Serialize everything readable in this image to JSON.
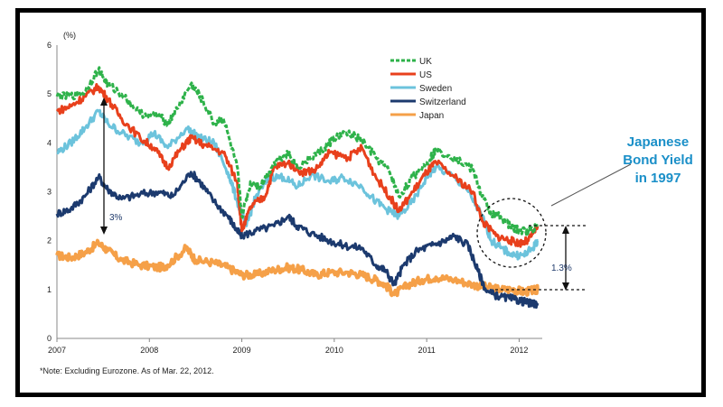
{
  "chart_data": {
    "type": "line",
    "title": "",
    "ylabel": "(%)",
    "xlabel": "",
    "ylim": [
      0,
      6
    ],
    "xlim": [
      2007,
      2012.25
    ],
    "yticks": [
      "0",
      "1",
      "2",
      "3",
      "4",
      "5",
      "6"
    ],
    "xticks": [
      {
        "label": "2007",
        "x": 2007
      },
      {
        "label": "2008",
        "x": 2008
      },
      {
        "label": "2009",
        "x": 2009
      },
      {
        "label": "2010",
        "x": 2010
      },
      {
        "label": "2011",
        "x": 2011
      },
      {
        "label": "2012",
        "x": 2012
      }
    ],
    "series": [
      {
        "name": "UK",
        "color": "#2eb24a",
        "dashed": true,
        "points": [
          [
            2007,
            4.95
          ],
          [
            2007.15,
            4.95
          ],
          [
            2007.3,
            5.05
          ],
          [
            2007.45,
            5.5
          ],
          [
            2007.55,
            5.2
          ],
          [
            2007.7,
            5.0
          ],
          [
            2007.9,
            4.6
          ],
          [
            2008.1,
            4.55
          ],
          [
            2008.2,
            4.4
          ],
          [
            2008.3,
            4.7
          ],
          [
            2008.45,
            5.2
          ],
          [
            2008.55,
            4.95
          ],
          [
            2008.7,
            4.4
          ],
          [
            2008.8,
            4.5
          ],
          [
            2008.95,
            3.5
          ],
          [
            2009.0,
            2.5
          ],
          [
            2009.1,
            3.2
          ],
          [
            2009.2,
            3.1
          ],
          [
            2009.35,
            3.6
          ],
          [
            2009.5,
            3.8
          ],
          [
            2009.6,
            3.5
          ],
          [
            2009.75,
            3.7
          ],
          [
            2009.9,
            3.9
          ],
          [
            2010.0,
            4.1
          ],
          [
            2010.15,
            4.2
          ],
          [
            2010.3,
            4.05
          ],
          [
            2010.45,
            3.7
          ],
          [
            2010.6,
            3.4
          ],
          [
            2010.7,
            2.9
          ],
          [
            2010.85,
            3.3
          ],
          [
            2011.0,
            3.6
          ],
          [
            2011.1,
            3.85
          ],
          [
            2011.3,
            3.7
          ],
          [
            2011.5,
            3.45
          ],
          [
            2011.6,
            2.9
          ],
          [
            2011.7,
            2.55
          ],
          [
            2011.8,
            2.5
          ],
          [
            2011.9,
            2.3
          ],
          [
            2012.0,
            2.2
          ],
          [
            2012.1,
            2.2
          ],
          [
            2012.2,
            2.3
          ]
        ]
      },
      {
        "name": "US",
        "color": "#e8401c",
        "dashed": false,
        "points": [
          [
            2007,
            4.65
          ],
          [
            2007.15,
            4.75
          ],
          [
            2007.3,
            4.95
          ],
          [
            2007.45,
            5.15
          ],
          [
            2007.55,
            4.9
          ],
          [
            2007.7,
            4.5
          ],
          [
            2007.9,
            4.1
          ],
          [
            2008.05,
            3.9
          ],
          [
            2008.2,
            3.5
          ],
          [
            2008.35,
            3.9
          ],
          [
            2008.45,
            4.1
          ],
          [
            2008.6,
            3.95
          ],
          [
            2008.8,
            3.8
          ],
          [
            2008.95,
            3.2
          ],
          [
            2009.0,
            2.2
          ],
          [
            2009.1,
            2.7
          ],
          [
            2009.25,
            2.9
          ],
          [
            2009.35,
            3.5
          ],
          [
            2009.5,
            3.6
          ],
          [
            2009.65,
            3.4
          ],
          [
            2009.8,
            3.45
          ],
          [
            2009.95,
            3.8
          ],
          [
            2010.15,
            3.7
          ],
          [
            2010.3,
            3.9
          ],
          [
            2010.45,
            3.3
          ],
          [
            2010.6,
            2.9
          ],
          [
            2010.7,
            2.6
          ],
          [
            2010.85,
            3.0
          ],
          [
            2011.0,
            3.4
          ],
          [
            2011.1,
            3.6
          ],
          [
            2011.3,
            3.3
          ],
          [
            2011.5,
            3.0
          ],
          [
            2011.6,
            2.4
          ],
          [
            2011.75,
            2.1
          ],
          [
            2011.9,
            2.0
          ],
          [
            2012.0,
            1.95
          ],
          [
            2012.1,
            2.0
          ],
          [
            2012.2,
            2.3
          ]
        ]
      },
      {
        "name": "Sweden",
        "color": "#6cc3dc",
        "dashed": false,
        "points": [
          [
            2007,
            3.8
          ],
          [
            2007.15,
            4.0
          ],
          [
            2007.3,
            4.3
          ],
          [
            2007.45,
            4.65
          ],
          [
            2007.55,
            4.4
          ],
          [
            2007.7,
            4.2
          ],
          [
            2007.9,
            4.0
          ],
          [
            2008.05,
            4.2
          ],
          [
            2008.2,
            3.9
          ],
          [
            2008.4,
            4.3
          ],
          [
            2008.55,
            4.1
          ],
          [
            2008.7,
            4.0
          ],
          [
            2008.85,
            3.4
          ],
          [
            2008.95,
            2.8
          ],
          [
            2009.05,
            2.3
          ],
          [
            2009.15,
            2.9
          ],
          [
            2009.3,
            3.3
          ],
          [
            2009.45,
            3.3
          ],
          [
            2009.6,
            3.1
          ],
          [
            2009.75,
            3.35
          ],
          [
            2009.95,
            3.2
          ],
          [
            2010.1,
            3.3
          ],
          [
            2010.3,
            3.1
          ],
          [
            2010.45,
            2.8
          ],
          [
            2010.6,
            2.6
          ],
          [
            2010.7,
            2.5
          ],
          [
            2010.85,
            2.8
          ],
          [
            2011.0,
            3.3
          ],
          [
            2011.1,
            3.5
          ],
          [
            2011.3,
            3.3
          ],
          [
            2011.45,
            3.0
          ],
          [
            2011.6,
            2.5
          ],
          [
            2011.7,
            2.0
          ],
          [
            2011.8,
            1.85
          ],
          [
            2011.95,
            1.7
          ],
          [
            2012.05,
            1.7
          ],
          [
            2012.15,
            1.85
          ],
          [
            2012.2,
            2.0
          ]
        ]
      },
      {
        "name": "Switzerland",
        "color": "#1c3a6e",
        "dashed": false,
        "points": [
          [
            2007,
            2.55
          ],
          [
            2007.15,
            2.65
          ],
          [
            2007.3,
            2.9
          ],
          [
            2007.45,
            3.3
          ],
          [
            2007.55,
            3.05
          ],
          [
            2007.7,
            2.85
          ],
          [
            2007.9,
            2.95
          ],
          [
            2008.1,
            3.0
          ],
          [
            2008.25,
            2.9
          ],
          [
            2008.45,
            3.4
          ],
          [
            2008.55,
            3.2
          ],
          [
            2008.7,
            2.8
          ],
          [
            2008.85,
            2.5
          ],
          [
            2008.95,
            2.2
          ],
          [
            2009.0,
            2.1
          ],
          [
            2009.15,
            2.2
          ],
          [
            2009.35,
            2.3
          ],
          [
            2009.5,
            2.5
          ],
          [
            2009.6,
            2.3
          ],
          [
            2009.75,
            2.15
          ],
          [
            2009.95,
            2.0
          ],
          [
            2010.1,
            1.9
          ],
          [
            2010.3,
            1.85
          ],
          [
            2010.45,
            1.5
          ],
          [
            2010.55,
            1.4
          ],
          [
            2010.65,
            1.1
          ],
          [
            2010.75,
            1.5
          ],
          [
            2010.9,
            1.8
          ],
          [
            2011.05,
            1.9
          ],
          [
            2011.2,
            2.0
          ],
          [
            2011.3,
            2.1
          ],
          [
            2011.45,
            1.9
          ],
          [
            2011.55,
            1.4
          ],
          [
            2011.65,
            0.95
          ],
          [
            2011.8,
            0.85
          ],
          [
            2011.95,
            0.8
          ],
          [
            2012.05,
            0.75
          ],
          [
            2012.15,
            0.7
          ],
          [
            2012.2,
            0.72
          ]
        ]
      },
      {
        "name": "Japan",
        "color": "#f5a048",
        "dashed": false,
        "points": [
          [
            2007,
            1.7
          ],
          [
            2007.15,
            1.65
          ],
          [
            2007.3,
            1.75
          ],
          [
            2007.45,
            1.95
          ],
          [
            2007.55,
            1.8
          ],
          [
            2007.7,
            1.6
          ],
          [
            2007.9,
            1.5
          ],
          [
            2008.1,
            1.45
          ],
          [
            2008.2,
            1.5
          ],
          [
            2008.4,
            1.85
          ],
          [
            2008.5,
            1.6
          ],
          [
            2008.7,
            1.55
          ],
          [
            2008.85,
            1.45
          ],
          [
            2009.0,
            1.3
          ],
          [
            2009.15,
            1.3
          ],
          [
            2009.35,
            1.4
          ],
          [
            2009.5,
            1.45
          ],
          [
            2009.65,
            1.4
          ],
          [
            2009.8,
            1.3
          ],
          [
            2009.95,
            1.35
          ],
          [
            2010.15,
            1.35
          ],
          [
            2010.3,
            1.3
          ],
          [
            2010.45,
            1.2
          ],
          [
            2010.55,
            1.1
          ],
          [
            2010.65,
            0.9
          ],
          [
            2010.8,
            1.1
          ],
          [
            2010.95,
            1.2
          ],
          [
            2011.1,
            1.25
          ],
          [
            2011.3,
            1.2
          ],
          [
            2011.5,
            1.1
          ],
          [
            2011.65,
            1.05
          ],
          [
            2011.8,
            1.0
          ],
          [
            2011.95,
            1.0
          ],
          [
            2012.05,
            0.95
          ],
          [
            2012.15,
            0.98
          ],
          [
            2012.2,
            1.0
          ]
        ]
      }
    ],
    "legend_position": "top-right",
    "annotations": {
      "spread_early": "3%",
      "spread_late": "1.3%",
      "callout_lines": [
        "Japanese",
        "Bond Yield",
        "in 1997"
      ],
      "note": "*Note: Excluding Eurozone. As of Mar. 22, 2012."
    }
  },
  "colors": {
    "annotation": "#1f3a6b",
    "callout": "#1a8fc8"
  }
}
